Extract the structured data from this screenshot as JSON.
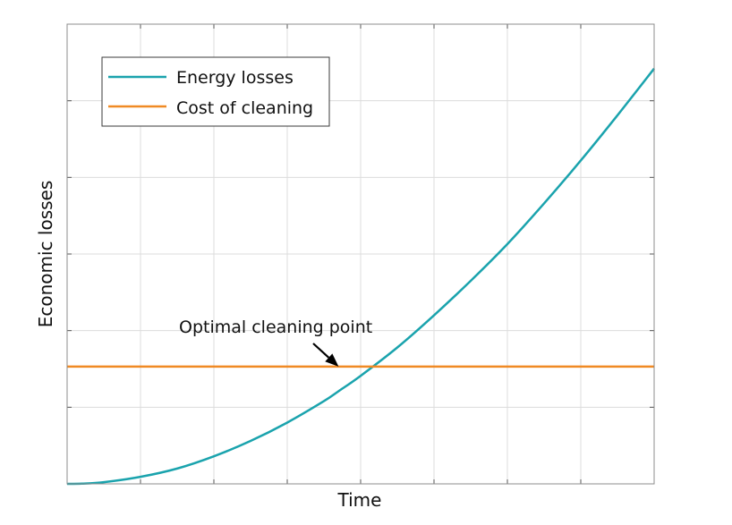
{
  "chart_data": {
    "type": "line",
    "title": "",
    "xlabel": "Time",
    "ylabel": "Economic losses",
    "xlim": [
      0,
      8
    ],
    "ylim": [
      0,
      6
    ],
    "x_ticks": [
      0,
      1,
      2,
      3,
      4,
      5,
      6,
      7,
      8
    ],
    "y_ticks": [
      0,
      1,
      2,
      3,
      4,
      5,
      6
    ],
    "tick_labels_shown": false,
    "grid": true,
    "legend_position": "top-left",
    "series": [
      {
        "name": "Energy losses",
        "color": "#1aa3ad",
        "x": [
          0,
          0.2,
          0.5,
          1,
          1.5,
          2,
          2.5,
          3,
          3.5,
          3.7,
          4,
          4.5,
          5,
          5.5,
          6,
          6.5,
          7,
          7.5,
          8
        ],
        "values": [
          0,
          0.003,
          0.022,
          0.092,
          0.2,
          0.36,
          0.56,
          0.8,
          1.08,
          1.21,
          1.41,
          1.78,
          2.2,
          2.65,
          3.13,
          3.66,
          4.22,
          4.81,
          5.42
        ]
      },
      {
        "name": "Cost of cleaning",
        "color": "#f08a24",
        "x": [
          0,
          8
        ],
        "values": [
          1.53,
          1.53
        ]
      }
    ],
    "annotations": [
      {
        "text": "Optimal cleaning point",
        "arrow_to": [
          3.7,
          1.53
        ]
      }
    ]
  }
}
